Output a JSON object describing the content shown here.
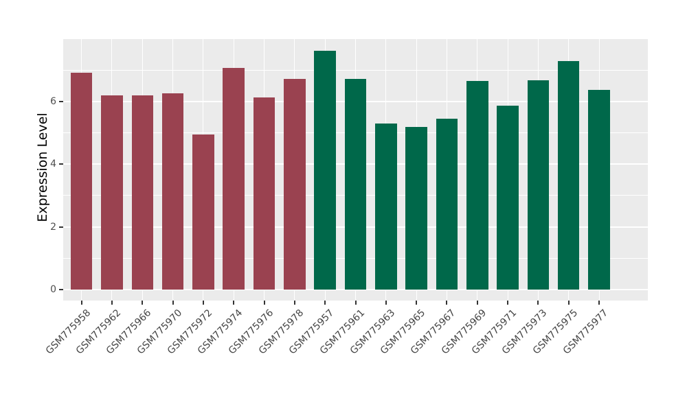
{
  "chart_data": {
    "type": "bar",
    "title": "",
    "xlabel": "",
    "ylabel": "Expression Level",
    "categories": [
      "GSM775958",
      "GSM775962",
      "GSM775966",
      "GSM775970",
      "GSM775972",
      "GSM775974",
      "GSM775976",
      "GSM775978",
      "GSM775957",
      "GSM775961",
      "GSM775963",
      "GSM775965",
      "GSM775967",
      "GSM775969",
      "GSM775971",
      "GSM775973",
      "GSM775975",
      "GSM775977"
    ],
    "values": [
      6.92,
      6.19,
      6.19,
      6.26,
      4.95,
      7.08,
      6.12,
      6.71,
      7.61,
      6.72,
      5.3,
      5.19,
      5.45,
      6.66,
      5.87,
      6.68,
      7.3,
      6.38
    ],
    "bar_colors": [
      "#9A4250",
      "#9A4250",
      "#9A4250",
      "#9A4250",
      "#9A4250",
      "#9A4250",
      "#9A4250",
      "#9A4250",
      "#00684A",
      "#00684A",
      "#00684A",
      "#00684A",
      "#00684A",
      "#00684A",
      "#00684A",
      "#00684A",
      "#00684A",
      "#00684A"
    ],
    "groups": [
      {
        "color": "#9A4250",
        "count": 8
      },
      {
        "color": "#00684A",
        "count": 10
      }
    ],
    "yticks": [
      0,
      2,
      4,
      6
    ],
    "minor_yticks": [
      1,
      3,
      5,
      7
    ],
    "ylim": [
      -0.35,
      7.99
    ],
    "grid": true,
    "legend_position": "none",
    "panel_bg": "#EBEBEB",
    "grid_color": "#FFFFFF",
    "tick_color": "#333333",
    "tick_label_color": "#4D4D4D",
    "axis_title_color": "#000000"
  }
}
